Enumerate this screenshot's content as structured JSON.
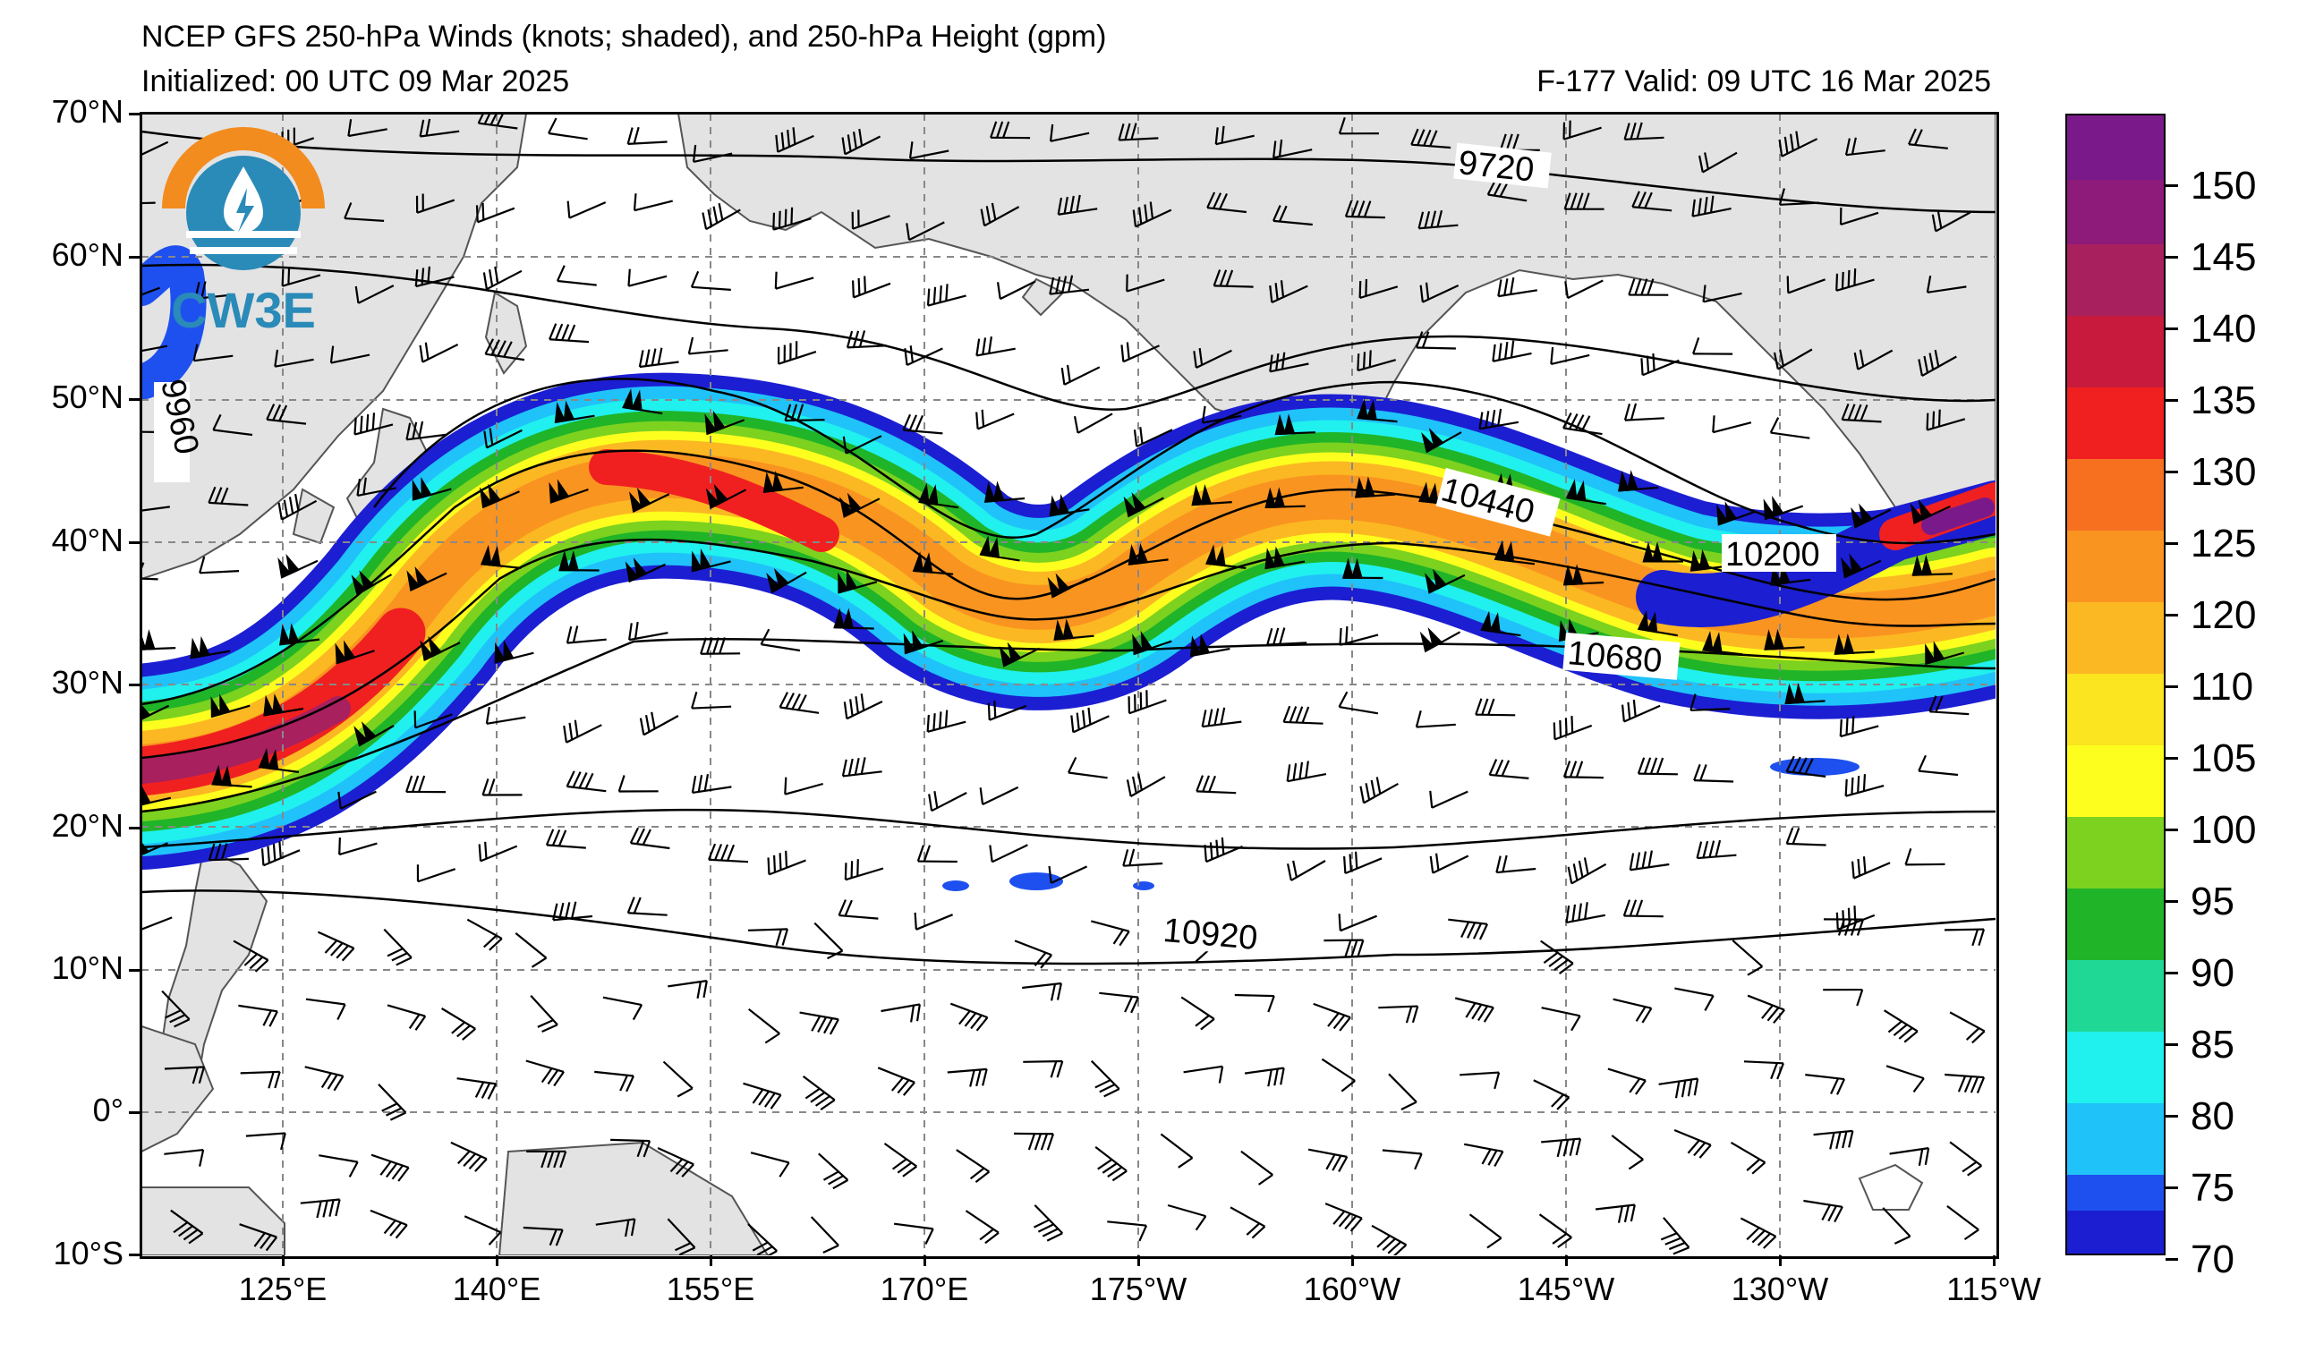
{
  "title": "NCEP GFS 250-hPa Winds (knots; shaded), and 250-hPa Height (gpm)",
  "initialized": "Initialized: 00 UTC 09 Mar 2025",
  "valid": "F-177  Valid: 09 UTC 16 Mar 2025",
  "logo_text": "CW3E",
  "lat_labels": [
    "70°N",
    "60°N",
    "50°N",
    "40°N",
    "30°N",
    "20°N",
    "10°N",
    "0°",
    "10°S"
  ],
  "lon_labels": [
    "125°E",
    "140°E",
    "155°E",
    "170°E",
    "175°W",
    "160°W",
    "145°W",
    "130°W",
    "115°W"
  ],
  "contour_labels": [
    "9720",
    "9960",
    "10440",
    "10200",
    "10680",
    "10920"
  ],
  "colorbar": {
    "labels": [
      "150",
      "145",
      "140",
      "135",
      "130",
      "125",
      "120",
      "110",
      "105",
      "100",
      "95",
      "90",
      "85",
      "80",
      "75",
      "70"
    ],
    "colors": [
      "#7a1a8a",
      "#8e1a7a",
      "#a8205e",
      "#c81a3c",
      "#f02020",
      "#f77020",
      "#fa9420",
      "#fbb822",
      "#fbe420",
      "#fefe1e",
      "#7cd21e",
      "#20b428",
      "#20d896",
      "#20f0ee",
      "#20c2fa",
      "#1e50f0",
      "#1c1ed2"
    ]
  },
  "map_colors": {
    "land": "#e3e3e3",
    "coast": "#555555",
    "grid": "#888888"
  }
}
